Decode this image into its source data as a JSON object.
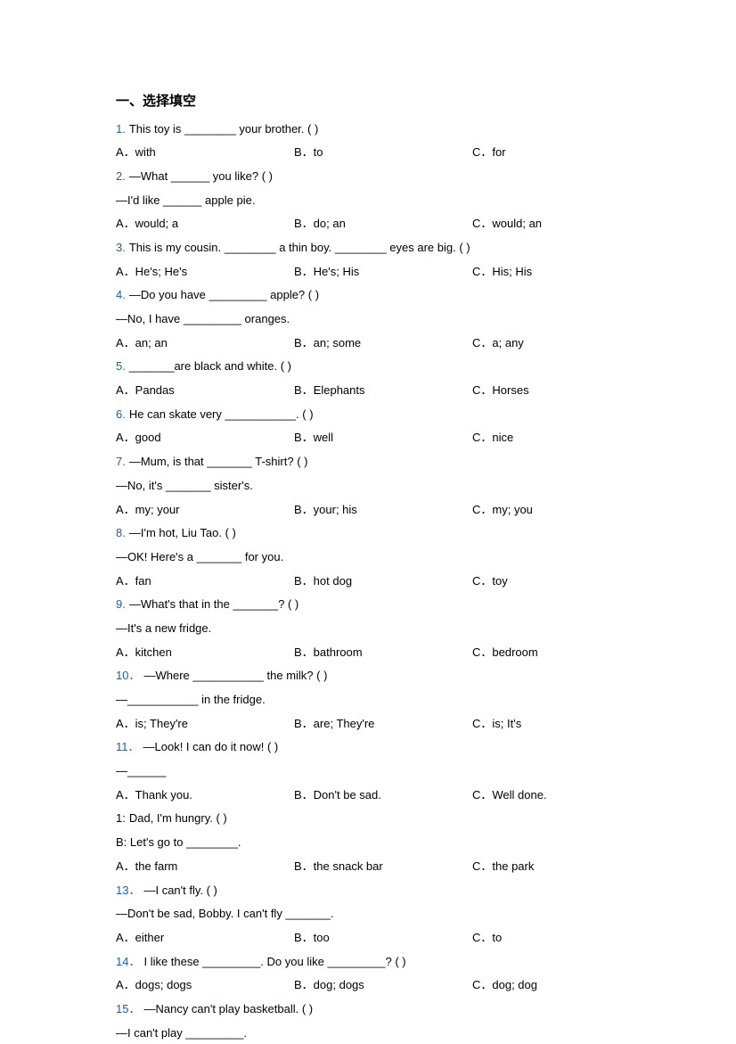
{
  "section_title": "一、选择填空",
  "questions": [
    {
      "num": "1.",
      "lines": [
        "This toy is ________ your brother. (    )"
      ],
      "opts": [
        "A．with",
        "B．to",
        "C．for"
      ]
    },
    {
      "num": "2.",
      "lines": [
        "—What ______ you like? (    )",
        "—I'd like ______ apple pie."
      ],
      "opts": [
        "A．would; a",
        "B．do; an",
        "C．would; an"
      ]
    },
    {
      "num": "3.",
      "lines": [
        "This is my cousin. ________ a thin boy. ________ eyes are big. (     )"
      ],
      "opts": [
        "A．He's; He's",
        "B．He's; His",
        "C．His; His"
      ]
    },
    {
      "num": "4.",
      "lines": [
        "—Do you have _________ apple? (     )",
        "—No, I have _________ oranges."
      ],
      "opts": [
        "A．an; an",
        "B．an; some",
        "C．a; any"
      ]
    },
    {
      "num": "5.",
      "lines": [
        "_______are black and white. (   )"
      ],
      "opts": [
        "A．Pandas",
        "B．Elephants",
        "C．Horses"
      ]
    },
    {
      "num": "6.",
      "lines": [
        "He can skate very ___________. (      )"
      ],
      "opts": [
        "A．good",
        "B．well",
        "C．nice"
      ]
    },
    {
      "num": "7.",
      "lines": [
        "—Mum, is that _______ T-shirt? (    )",
        "—No, it's _______ sister's."
      ],
      "opts": [
        "A．my; your",
        "B．your; his",
        "C．my; you"
      ]
    },
    {
      "num": "8.",
      "lines": [
        "—I'm hot, Liu Tao. (    )",
        "—OK! Here's a _______ for you."
      ],
      "opts": [
        "A．fan",
        "B．hot dog",
        "C．toy"
      ]
    },
    {
      "num": "9.",
      "lines": [
        "—What's that in the _______? (    )",
        "—It's a new fridge."
      ],
      "opts": [
        "A．kitchen",
        "B．bathroom",
        "C．bedroom"
      ]
    },
    {
      "num": "10．",
      "lines": [
        "—Where ___________ the milk? (    )",
        "—___________ in the fridge."
      ],
      "opts": [
        "A．is; They're",
        "B．are; They're",
        "C．is; It's"
      ]
    },
    {
      "num": "11．",
      "lines": [
        "—Look! I can do it now! (    )",
        "—______"
      ],
      "opts": [
        "A．Thank you.",
        "B．Don't be sad.",
        "C．Well done."
      ]
    },
    {
      "num": "1:",
      "num_black": true,
      "lines": [
        "Dad, I'm hungry. (    )",
        "B: Let's go to ________."
      ],
      "opts": [
        "A．the farm",
        "B．the snack bar",
        "C．the park"
      ]
    },
    {
      "num": "13．",
      "lines": [
        "—I can't fly. (    )",
        "—Don't be sad, Bobby. I can't fly _______."
      ],
      "opts": [
        "A．either",
        "B．too",
        "C．to"
      ]
    },
    {
      "num": "14．",
      "lines": [
        "I like these _________. Do you like _________? (    )"
      ],
      "opts": [
        "A．dogs; dogs",
        "B．dog; dogs",
        "C．dog; dog"
      ]
    },
    {
      "num": "15．",
      "lines": [
        "—Nancy can't play basketball. (    )",
        "—I can't play _________."
      ],
      "opts": []
    }
  ]
}
